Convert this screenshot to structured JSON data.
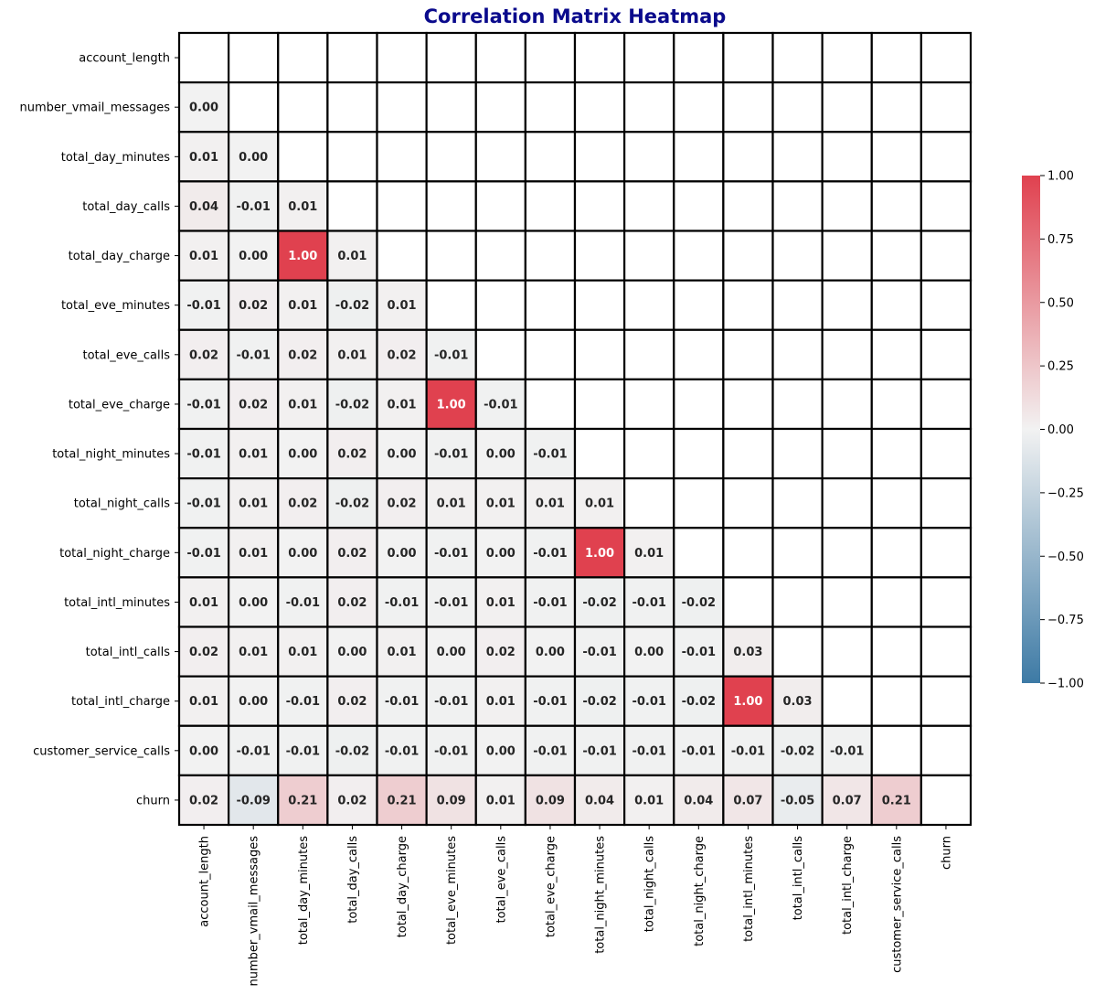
{
  "chart_data": {
    "type": "heatmap",
    "title": "Correlation Matrix Heatmap",
    "xlabel": "",
    "ylabel": "",
    "labels": [
      "account_length",
      "number_vmail_messages",
      "total_day_minutes",
      "total_day_calls",
      "total_day_charge",
      "total_eve_minutes",
      "total_eve_calls",
      "total_eve_charge",
      "total_night_minutes",
      "total_night_calls",
      "total_night_charge",
      "total_intl_minutes",
      "total_intl_calls",
      "total_intl_charge",
      "customer_service_calls",
      "churn"
    ],
    "mask": "upper triangle including diagonal (blank)",
    "values": [
      [],
      [
        -0.0
      ],
      [
        0.01,
        0.0
      ],
      [
        0.04,
        -0.01,
        0.01
      ],
      [
        0.01,
        0.0,
        1.0,
        0.01
      ],
      [
        -0.01,
        0.02,
        0.01,
        -0.02,
        0.01
      ],
      [
        0.02,
        -0.01,
        0.02,
        0.01,
        0.02,
        -0.01
      ],
      [
        -0.01,
        0.02,
        0.01,
        -0.02,
        0.01,
        1.0,
        -0.01
      ],
      [
        -0.01,
        0.01,
        0.0,
        0.02,
        0.0,
        -0.01,
        -0.0,
        -0.01
      ],
      [
        -0.01,
        0.01,
        0.02,
        -0.02,
        0.02,
        0.01,
        0.01,
        0.01,
        0.01
      ],
      [
        -0.01,
        0.01,
        0.0,
        0.02,
        0.0,
        -0.01,
        -0.0,
        -0.01,
        1.0,
        0.01
      ],
      [
        0.01,
        0.0,
        -0.01,
        0.02,
        -0.01,
        -0.01,
        0.01,
        -0.01,
        -0.02,
        -0.01,
        -0.02
      ],
      [
        0.02,
        0.01,
        0.01,
        0.0,
        0.01,
        0.0,
        0.02,
        0.0,
        -0.01,
        0.0,
        -0.01,
        0.03
      ],
      [
        0.01,
        0.0,
        -0.01,
        0.02,
        -0.01,
        -0.01,
        0.01,
        -0.01,
        -0.02,
        -0.01,
        -0.02,
        1.0,
        0.03
      ],
      [
        -0.0,
        -0.01,
        -0.01,
        -0.02,
        -0.01,
        -0.01,
        0.0,
        -0.01,
        -0.01,
        -0.01,
        -0.01,
        -0.01,
        -0.02,
        -0.01
      ],
      [
        0.02,
        -0.09,
        0.21,
        0.02,
        0.21,
        0.09,
        0.01,
        0.09,
        0.04,
        0.01,
        0.04,
        0.07,
        -0.05,
        0.07,
        0.21
      ]
    ],
    "value_format": "2 decimals",
    "colorbar": {
      "range": [
        -1.0,
        1.0
      ],
      "ticks": [
        1.0,
        0.75,
        0.5,
        0.25,
        0.0,
        -0.25,
        -0.5,
        -0.75,
        -1.0
      ],
      "tick_labels": [
        "1.00",
        "0.75",
        "0.50",
        "0.25",
        "0.00",
        "−0.25",
        "−0.50",
        "−0.75",
        "−1.00"
      ],
      "colors": {
        "low": "#3d7aa5",
        "mid": "#f2f2f2",
        "high": "#e0414f"
      }
    },
    "cell_border_color": "#000000",
    "title_color": "#0a0a8c"
  }
}
